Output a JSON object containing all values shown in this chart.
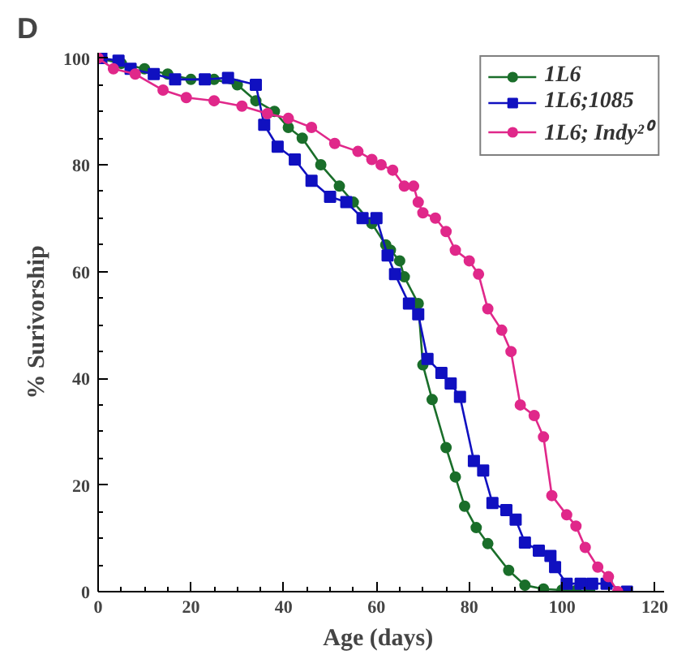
{
  "chart_data": {
    "type": "line",
    "title": "D",
    "xlabel": "Age  (days)",
    "ylabel": "% Surivorship",
    "xlim": [
      0,
      122
    ],
    "ylim": [
      0,
      101
    ],
    "xticks": [
      0,
      20,
      40,
      60,
      80,
      100,
      120
    ],
    "yticks": [
      0,
      20,
      40,
      60,
      80,
      100
    ],
    "grid": false,
    "legend": "top right",
    "line_style": "solid",
    "series": [
      {
        "name": "1L6",
        "color": "#1a6e2a",
        "marker": "circle",
        "x": [
          0,
          5,
          10,
          15,
          20,
          25,
          30,
          34,
          38,
          41,
          44,
          48,
          52,
          55,
          59,
          62,
          63,
          65,
          66,
          69,
          70,
          72,
          75,
          77,
          79,
          81.5,
          84,
          88.5,
          92,
          96,
          100,
          103,
          106
        ],
        "values": [
          100,
          99,
          98,
          97,
          96,
          96,
          95,
          92,
          90,
          87,
          85,
          80,
          76,
          73,
          69,
          65,
          64,
          62,
          59,
          54,
          42.5,
          36,
          27,
          21.5,
          16,
          12,
          9,
          4,
          1.2,
          0.5,
          0.3,
          0.2,
          0
        ]
      },
      {
        "name": "1L6;1085",
        "color": "#1010c0",
        "marker": "square",
        "x": [
          0.7,
          4.4,
          7,
          12,
          16.6,
          23,
          28,
          34,
          35.8,
          38.7,
          42.4,
          46,
          50,
          53.5,
          57,
          60,
          62.4,
          64,
          67,
          69,
          71,
          74,
          76,
          78,
          81,
          83,
          85,
          88,
          90,
          92,
          95,
          97.5,
          98.5,
          101,
          104,
          106.5,
          109.6,
          114
        ],
        "values": [
          100,
          99.5,
          98,
          97,
          96,
          96,
          96.3,
          95,
          87.5,
          83.4,
          81,
          77,
          74,
          73,
          70,
          70,
          63,
          59.5,
          54,
          52,
          43.6,
          41,
          39,
          36.5,
          24.5,
          22.7,
          16.6,
          15.3,
          13.5,
          9.2,
          7.7,
          6.7,
          4.6,
          1.5,
          1.5,
          1.5,
          1.5,
          0
        ]
      },
      {
        "name": "1L6; Indy²⁰",
        "color": "#e0288a",
        "marker": "circle",
        "x": [
          0,
          3.3,
          8,
          14,
          19,
          25,
          31,
          36.5,
          41,
          46,
          51,
          56,
          59,
          61,
          63.5,
          66,
          68,
          69,
          70,
          72.7,
          75,
          77,
          80,
          82,
          84,
          87,
          89,
          91,
          94,
          96,
          97.8,
          101,
          103,
          105,
          107.7,
          110,
          112
        ],
        "values": [
          100,
          98,
          97,
          94,
          92.6,
          92,
          91,
          89.6,
          88.7,
          87,
          84,
          82.5,
          81,
          80,
          79,
          76,
          76,
          73,
          71,
          70,
          67.5,
          64,
          62,
          59.5,
          53,
          49,
          45,
          35,
          33,
          29,
          18,
          14.4,
          12.3,
          8.3,
          4.6,
          2.8,
          0
        ]
      }
    ]
  }
}
